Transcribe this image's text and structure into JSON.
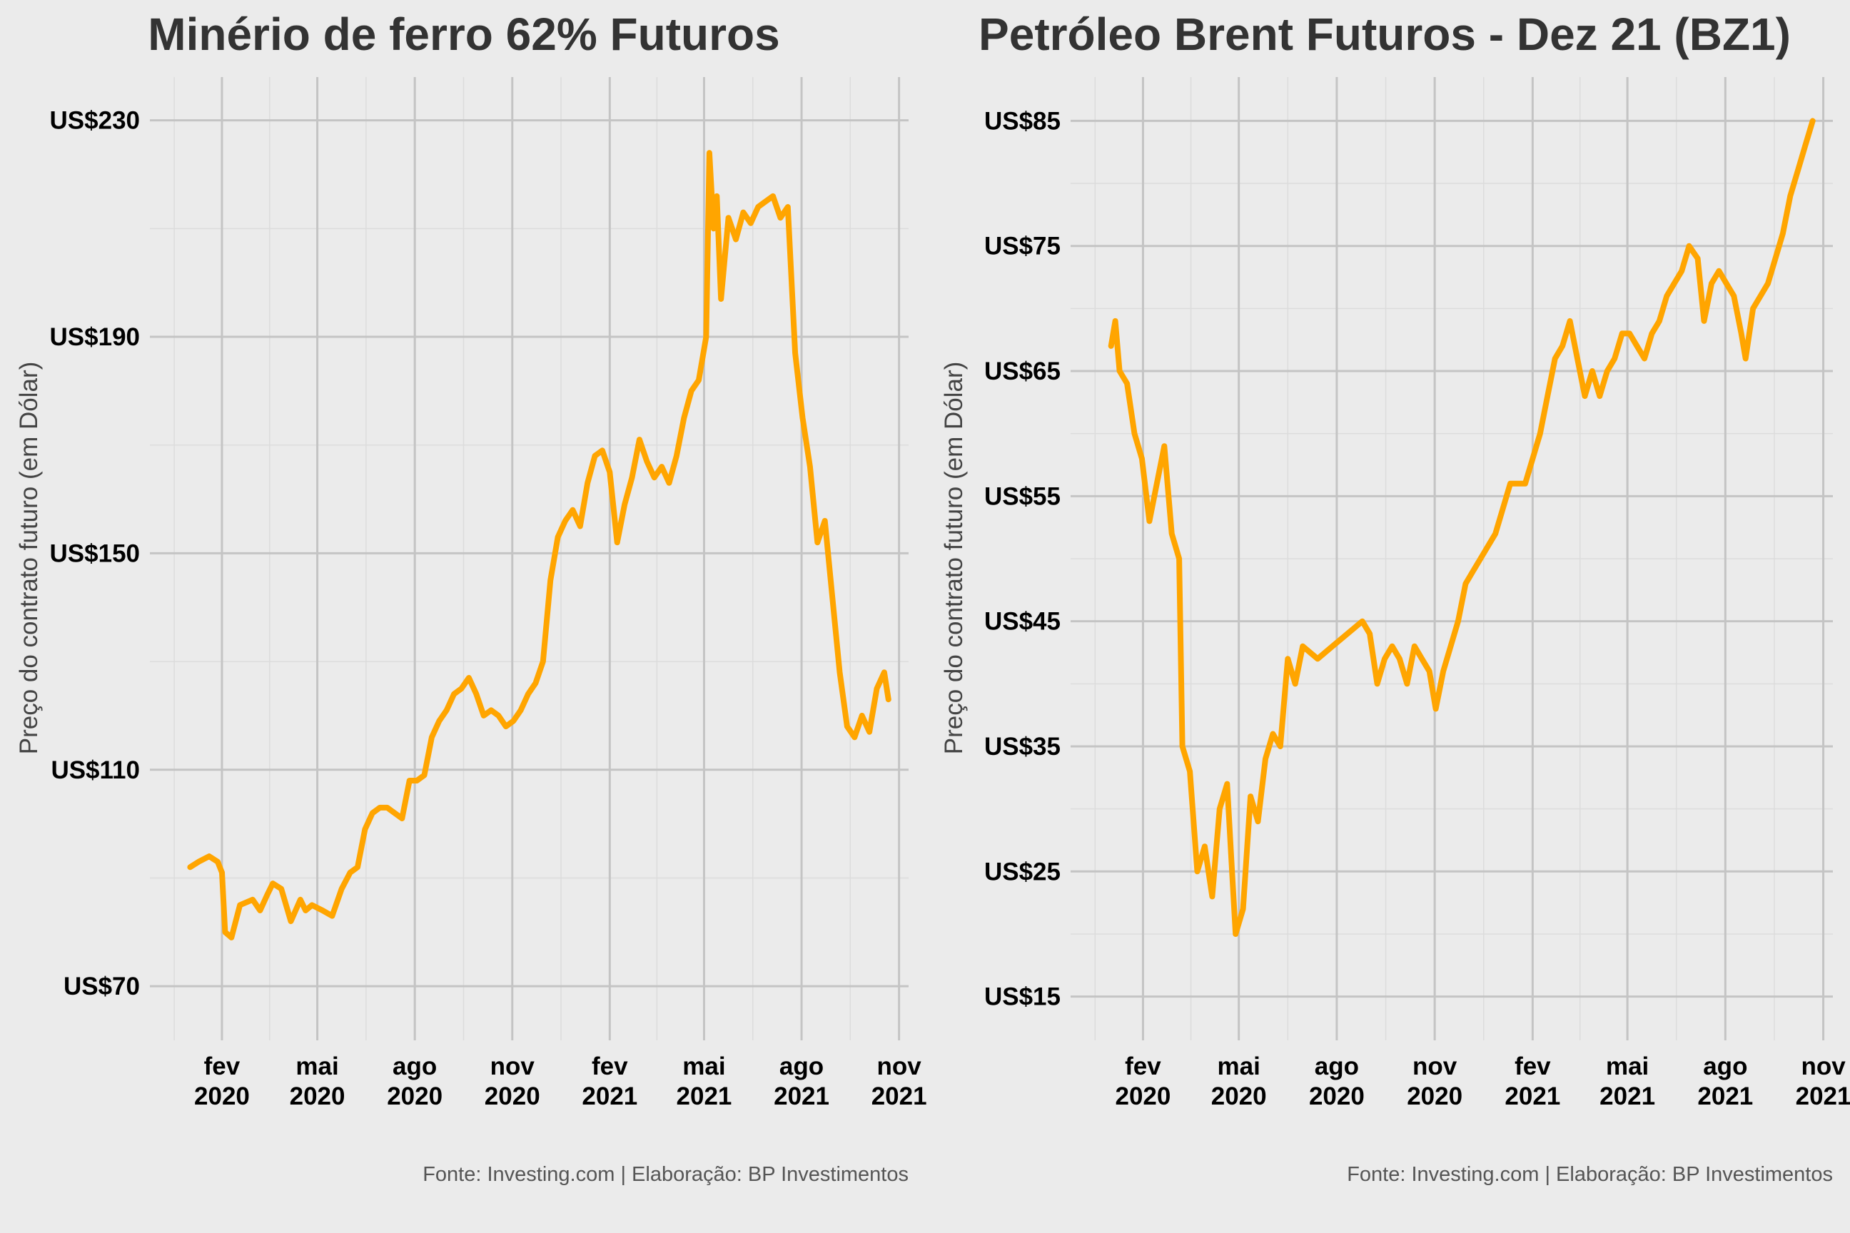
{
  "colors": {
    "line": "#FFA500",
    "background": "#EBEBEB"
  },
  "chart_data": [
    {
      "type": "line",
      "title": "Minério de ferro 62% Futuros",
      "ylabel": "Preço do contrato futuro (em Dólar)",
      "caption": "Fonte: Investing.com | Elaboração: BP Investimentos",
      "ylim": [
        60,
        238
      ],
      "y_ticks": [
        70,
        110,
        150,
        190,
        230
      ],
      "y_tick_labels": [
        "US$70",
        "US$110",
        "US$150",
        "US$190",
        "US$230"
      ],
      "xlim": [
        "2019-11-25",
        "2021-11-10"
      ],
      "x_ticks": [
        "2020-02-01",
        "2020-05-01",
        "2020-08-01",
        "2020-11-01",
        "2021-02-01",
        "2021-05-01",
        "2021-08-01",
        "2021-11-01"
      ],
      "x_tick_labels": [
        [
          "fev",
          "2020"
        ],
        [
          "mai",
          "2020"
        ],
        [
          "ago",
          "2020"
        ],
        [
          "nov",
          "2020"
        ],
        [
          "fev",
          "2021"
        ],
        [
          "mai",
          "2021"
        ],
        [
          "ago",
          "2021"
        ],
        [
          "nov",
          "2021"
        ]
      ],
      "grid": true,
      "series": [
        {
          "x": [
            "2020-01-02",
            "2020-01-10",
            "2020-01-20",
            "2020-01-28",
            "2020-02-01",
            "2020-02-04",
            "2020-02-10",
            "2020-02-18",
            "2020-03-01",
            "2020-03-08",
            "2020-03-15",
            "2020-03-20",
            "2020-03-28",
            "2020-04-06",
            "2020-04-15",
            "2020-04-20",
            "2020-04-26",
            "2020-05-06",
            "2020-05-15",
            "2020-05-24",
            "2020-06-01",
            "2020-06-08",
            "2020-06-15",
            "2020-06-22",
            "2020-06-29",
            "2020-07-06",
            "2020-07-13",
            "2020-07-20",
            "2020-07-27",
            "2020-08-03",
            "2020-08-10",
            "2020-08-17",
            "2020-08-24",
            "2020-08-31",
            "2020-09-07",
            "2020-09-14",
            "2020-09-21",
            "2020-09-28",
            "2020-10-05",
            "2020-10-12",
            "2020-10-19",
            "2020-10-26",
            "2020-11-02",
            "2020-11-09",
            "2020-11-16",
            "2020-11-23",
            "2020-11-30",
            "2020-12-07",
            "2020-12-14",
            "2020-12-21",
            "2020-12-28",
            "2021-01-04",
            "2021-01-11",
            "2021-01-18",
            "2021-01-25",
            "2021-02-01",
            "2021-02-08",
            "2021-02-15",
            "2021-02-22",
            "2021-03-01",
            "2021-03-08",
            "2021-03-15",
            "2021-03-22",
            "2021-03-29",
            "2021-04-05",
            "2021-04-12",
            "2021-04-19",
            "2021-04-26",
            "2021-05-03",
            "2021-05-06",
            "2021-05-10",
            "2021-05-13",
            "2021-05-17",
            "2021-05-24",
            "2021-05-31",
            "2021-06-07",
            "2021-06-14",
            "2021-06-21",
            "2021-06-28",
            "2021-07-05",
            "2021-07-12",
            "2021-07-19",
            "2021-07-26",
            "2021-08-02",
            "2021-08-09",
            "2021-08-16",
            "2021-08-23",
            "2021-08-30",
            "2021-09-06",
            "2021-09-13",
            "2021-09-20",
            "2021-09-27",
            "2021-10-04",
            "2021-10-11",
            "2021-10-18",
            "2021-10-22"
          ],
          "values": [
            92,
            93,
            94,
            93,
            91,
            80,
            79,
            85,
            86,
            84,
            87,
            89,
            88,
            82,
            86,
            84,
            85,
            84,
            83,
            88,
            91,
            92,
            99,
            102,
            103,
            103,
            102,
            101,
            108,
            108,
            109,
            116,
            119,
            121,
            124,
            125,
            127,
            124,
            120,
            121,
            120,
            118,
            119,
            121,
            124,
            126,
            130,
            145,
            153,
            156,
            158,
            155,
            163,
            168,
            169,
            165,
            152,
            159,
            164,
            171,
            167,
            164,
            166,
            163,
            168,
            175,
            180,
            182,
            190,
            224,
            210,
            216,
            197,
            212,
            208,
            213,
            211,
            214,
            215,
            216,
            212,
            214,
            187,
            175,
            166,
            152,
            156,
            142,
            128,
            118,
            116,
            120,
            117,
            125,
            128,
            123
          ]
        }
      ]
    },
    {
      "type": "line",
      "title": "Petróleo Brent Futuros - Dez 21 (BZ1)",
      "ylabel": "Preço do contrato futuro (em Dólar)",
      "caption": "Fonte: Investing.com | Elaboração: BP Investimentos",
      "ylim": [
        11.5,
        88.5
      ],
      "y_ticks": [
        15,
        25,
        35,
        45,
        55,
        65,
        75,
        85
      ],
      "y_tick_labels": [
        "US$15",
        "US$25",
        "US$35",
        "US$45",
        "US$55",
        "US$65",
        "US$75",
        "US$85"
      ],
      "xlim": [
        "2019-11-25",
        "2021-11-10"
      ],
      "x_ticks": [
        "2020-02-01",
        "2020-05-01",
        "2020-08-01",
        "2020-11-01",
        "2021-02-01",
        "2021-05-01",
        "2021-08-01",
        "2021-11-01"
      ],
      "x_tick_labels": [
        [
          "fev",
          "2020"
        ],
        [
          "mai",
          "2020"
        ],
        [
          "ago",
          "2020"
        ],
        [
          "nov",
          "2020"
        ],
        [
          "fev",
          "2021"
        ],
        [
          "mai",
          "2021"
        ],
        [
          "ago",
          "2021"
        ],
        [
          "nov",
          "2021"
        ]
      ],
      "grid": true,
      "series": [
        {
          "x": [
            "2020-01-02",
            "2020-01-06",
            "2020-01-10",
            "2020-01-17",
            "2020-01-24",
            "2020-01-31",
            "2020-02-07",
            "2020-02-14",
            "2020-02-21",
            "2020-02-28",
            "2020-03-06",
            "2020-03-09",
            "2020-03-16",
            "2020-03-23",
            "2020-03-30",
            "2020-04-06",
            "2020-04-13",
            "2020-04-20",
            "2020-04-24",
            "2020-04-28",
            "2020-05-05",
            "2020-05-12",
            "2020-05-19",
            "2020-05-26",
            "2020-06-02",
            "2020-06-09",
            "2020-06-16",
            "2020-06-23",
            "2020-06-30",
            "2020-07-14",
            "2020-07-28",
            "2020-08-11",
            "2020-08-25",
            "2020-09-01",
            "2020-09-08",
            "2020-09-15",
            "2020-09-22",
            "2020-09-29",
            "2020-10-06",
            "2020-10-13",
            "2020-10-20",
            "2020-10-27",
            "2020-11-02",
            "2020-11-09",
            "2020-11-16",
            "2020-11-23",
            "2020-11-30",
            "2020-12-07",
            "2020-12-14",
            "2020-12-21",
            "2020-12-28",
            "2021-01-04",
            "2021-01-11",
            "2021-01-18",
            "2021-01-25",
            "2021-02-01",
            "2021-02-08",
            "2021-02-15",
            "2021-02-22",
            "2021-03-01",
            "2021-03-08",
            "2021-03-15",
            "2021-03-22",
            "2021-03-29",
            "2021-04-05",
            "2021-04-12",
            "2021-04-19",
            "2021-04-26",
            "2021-05-03",
            "2021-05-10",
            "2021-05-17",
            "2021-05-24",
            "2021-05-31",
            "2021-06-07",
            "2021-06-14",
            "2021-06-21",
            "2021-06-28",
            "2021-07-06",
            "2021-07-12",
            "2021-07-19",
            "2021-07-26",
            "2021-08-02",
            "2021-08-09",
            "2021-08-16",
            "2021-08-20",
            "2021-08-27",
            "2021-09-03",
            "2021-09-10",
            "2021-09-17",
            "2021-09-24",
            "2021-10-01",
            "2021-10-08",
            "2021-10-15",
            "2021-10-22"
          ],
          "values": [
            67,
            69,
            65,
            64,
            60,
            58,
            53,
            56,
            59,
            52,
            50,
            35,
            33,
            25,
            27,
            23,
            30,
            32,
            26,
            20,
            22,
            31,
            29,
            34,
            36,
            35,
            42,
            40,
            43,
            42,
            43,
            44,
            45,
            44,
            40,
            42,
            43,
            42,
            40,
            43,
            42,
            41,
            38,
            41,
            43,
            45,
            48,
            49,
            50,
            51,
            52,
            54,
            56,
            56,
            56,
            58,
            60,
            63,
            66,
            67,
            69,
            66,
            63,
            65,
            63,
            65,
            66,
            68,
            68,
            67,
            66,
            68,
            69,
            71,
            72,
            73,
            75,
            74,
            69,
            72,
            73,
            72,
            71,
            68,
            66,
            70,
            71,
            72,
            74,
            76,
            79,
            81,
            83,
            85
          ]
        }
      ]
    }
  ]
}
